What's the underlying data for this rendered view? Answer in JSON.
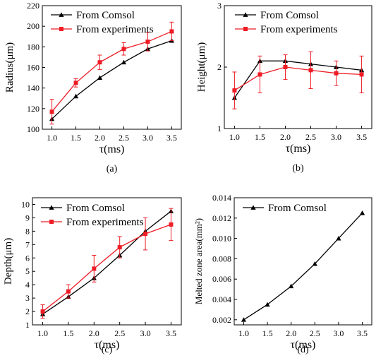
{
  "chart_data": [
    {
      "type": "line",
      "panel_label": "(a)",
      "xlabel": "τ(ms)",
      "ylabel": "Radius(μm)",
      "xlim": [
        0.8,
        3.7
      ],
      "ylim": [
        100,
        220
      ],
      "xticks": [
        "1.0",
        "1.5",
        "2.0",
        "2.5",
        "3.0",
        "3.5"
      ],
      "yticks": [
        "100",
        "120",
        "140",
        "160",
        "180",
        "200",
        "220"
      ],
      "legend_position": "top-left",
      "x": [
        1.0,
        1.5,
        2.0,
        2.5,
        3.0,
        3.5
      ],
      "series": [
        {
          "name": "From Comsol",
          "color": "#000000",
          "marker": "triangle",
          "values": [
            110,
            132,
            150,
            165,
            178,
            186
          ]
        },
        {
          "name": "From experiments",
          "color": "#ee1c25",
          "marker": "square",
          "values": [
            117,
            145,
            165,
            178,
            185,
            195
          ],
          "errors": [
            12,
            4,
            7,
            6,
            9,
            9
          ]
        }
      ]
    },
    {
      "type": "line",
      "panel_label": "(b)",
      "xlabel": "τ(ms)",
      "ylabel": "Height(μm)",
      "xlim": [
        0.8,
        3.7
      ],
      "ylim": [
        1,
        3
      ],
      "xticks": [
        "1.0",
        "1.5",
        "2.0",
        "2.5",
        "3.0",
        "3.5"
      ],
      "yticks": [
        "1",
        "2",
        "3"
      ],
      "legend_position": "top-right",
      "x": [
        1.0,
        1.5,
        2.0,
        2.5,
        3.0,
        3.5
      ],
      "series": [
        {
          "name": "From Comsol",
          "color": "#000000",
          "marker": "triangle",
          "values": [
            1.5,
            2.1,
            2.1,
            2.05,
            2.0,
            1.95
          ]
        },
        {
          "name": "From experiments",
          "color": "#ee1c25",
          "marker": "square",
          "values": [
            1.62,
            1.88,
            2.0,
            1.95,
            1.9,
            1.88
          ],
          "errors": [
            0.3,
            0.3,
            0.2,
            0.3,
            0.2,
            0.3
          ]
        }
      ]
    },
    {
      "type": "line",
      "panel_label": "(c)",
      "xlabel": "τ(ms)",
      "ylabel": "Depth(μm)",
      "xlim": [
        0.8,
        3.7
      ],
      "ylim": [
        1,
        10.5
      ],
      "xticks": [
        "1.0",
        "1.5",
        "2.0",
        "2.5",
        "3.0",
        "3.5"
      ],
      "yticks": [
        "1",
        "2",
        "3",
        "4",
        "5",
        "6",
        "7",
        "8",
        "9",
        "10"
      ],
      "legend_position": "top-left",
      "x": [
        1.0,
        1.5,
        2.0,
        2.5,
        3.0,
        3.5
      ],
      "series": [
        {
          "name": "From Comsol",
          "color": "#000000",
          "marker": "triangle",
          "values": [
            1.8,
            3.1,
            4.5,
            6.2,
            8.0,
            9.5
          ]
        },
        {
          "name": "From experiments",
          "color": "#ee1c25",
          "marker": "square",
          "values": [
            2.0,
            3.5,
            5.2,
            6.8,
            7.8,
            8.5
          ],
          "errors": [
            0.5,
            0.5,
            1.0,
            0.8,
            1.2,
            1.2
          ]
        }
      ]
    },
    {
      "type": "line",
      "panel_label": "(d)",
      "xlabel": "τ(ms)",
      "ylabel": "Melted zone area(mm²)",
      "xlim": [
        0.8,
        3.7
      ],
      "ylim": [
        0.0015,
        0.014
      ],
      "xticks": [
        "1.0",
        "1.5",
        "2.0",
        "2.5",
        "3.0",
        "3.5"
      ],
      "yticks": [
        "0.002",
        "0.004",
        "0.006",
        "0.008",
        "0.010",
        "0.012",
        "0.014"
      ],
      "legend_position": "top-left",
      "x": [
        1.0,
        1.5,
        2.0,
        2.5,
        3.0,
        3.5
      ],
      "series": [
        {
          "name": "From Comsol",
          "color": "#000000",
          "marker": "triangle",
          "values": [
            0.002,
            0.0035,
            0.0053,
            0.0075,
            0.01,
            0.0125
          ]
        }
      ]
    }
  ]
}
